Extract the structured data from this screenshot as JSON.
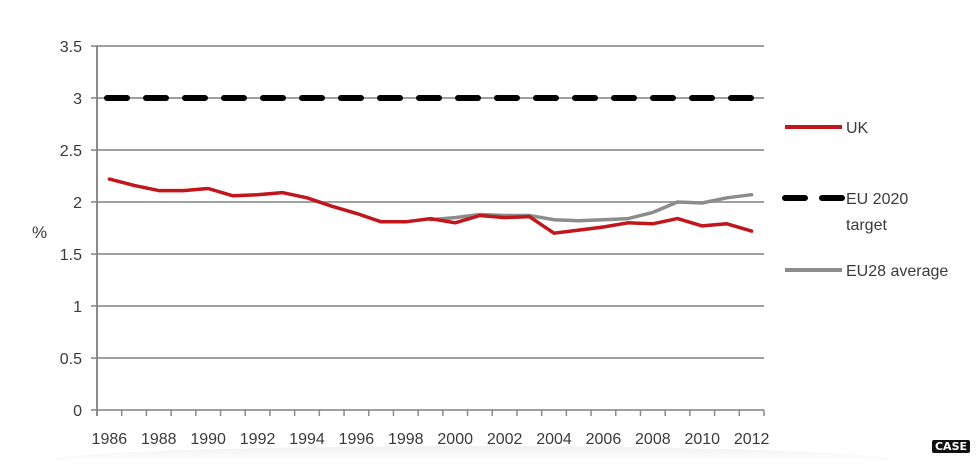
{
  "chart_data": {
    "type": "line",
    "title": "",
    "xlabel": "",
    "ylabel": "%",
    "ylim": [
      0,
      3.5
    ],
    "yticks": [
      "0",
      "0.5",
      "1",
      "1.5",
      "2",
      "2.5",
      "3",
      "3.5"
    ],
    "x": [
      "1986",
      "1987",
      "1988",
      "1989",
      "1990",
      "1991",
      "1992",
      "1993",
      "1994",
      "1995",
      "1996",
      "1997",
      "1998",
      "1999",
      "2000",
      "2001",
      "2002",
      "2003",
      "2004",
      "2005",
      "2006",
      "2007",
      "2008",
      "2009",
      "2010",
      "2011",
      "2012"
    ],
    "xtick_labels": [
      "1986",
      "1988",
      "1990",
      "1992",
      "1994",
      "1996",
      "1998",
      "2000",
      "2002",
      "2004",
      "2006",
      "2008",
      "2010",
      "2012"
    ],
    "grid": true,
    "legend_position": "right",
    "series": [
      {
        "name": "UK",
        "color": "#c0161c",
        "style": "solid",
        "values": [
          2.22,
          2.16,
          2.11,
          2.11,
          2.13,
          2.06,
          2.07,
          2.09,
          2.04,
          1.96,
          1.89,
          1.81,
          1.81,
          1.84,
          1.8,
          1.87,
          1.85,
          1.86,
          1.7,
          1.73,
          1.76,
          1.8,
          1.79,
          1.84,
          1.77,
          1.79,
          1.72
        ]
      },
      {
        "name": "EU 2020 target",
        "color": "#000000",
        "style": "dashed",
        "values": [
          3,
          3,
          3,
          3,
          3,
          3,
          3,
          3,
          3,
          3,
          3,
          3,
          3,
          3,
          3,
          3,
          3,
          3,
          3,
          3,
          3,
          3,
          3,
          3,
          3,
          3,
          3
        ]
      },
      {
        "name": "EU28 average",
        "color": "#8c8c8c",
        "style": "solid",
        "values": [
          null,
          null,
          null,
          null,
          null,
          null,
          null,
          null,
          null,
          null,
          null,
          null,
          null,
          1.83,
          1.85,
          1.88,
          1.87,
          1.87,
          1.83,
          1.82,
          1.83,
          1.84,
          1.9,
          2.0,
          1.99,
          2.04,
          2.07
        ]
      }
    ]
  },
  "legend": {
    "items": [
      {
        "label_line1": "UK",
        "label_line2": ""
      },
      {
        "label_line1": "EU 2020",
        "label_line2": "target"
      },
      {
        "label_line1": "EU28 average",
        "label_line2": ""
      }
    ]
  },
  "watermark": {
    "label": "CASE"
  },
  "colors": {
    "grid": "#a0a0a0",
    "axis": "#8a8a8a"
  }
}
